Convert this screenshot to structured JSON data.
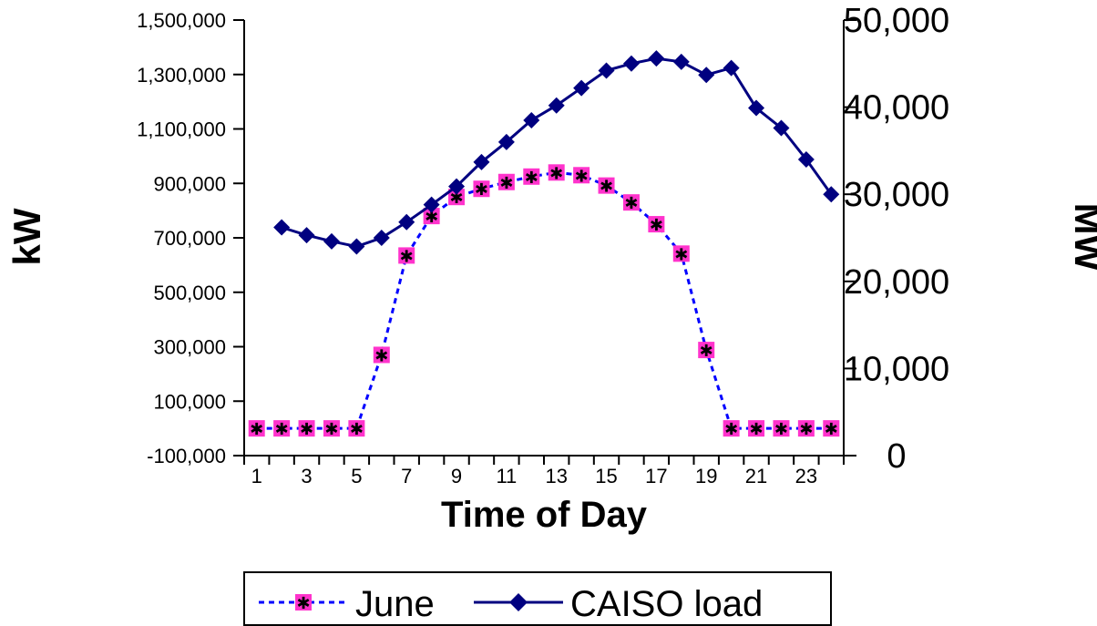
{
  "chart_data": {
    "type": "line",
    "xlabel": "Time of Day",
    "ylabel": "kW",
    "y2label": "MW",
    "x": [
      1,
      2,
      3,
      4,
      5,
      6,
      7,
      8,
      9,
      10,
      11,
      12,
      13,
      14,
      15,
      16,
      17,
      18,
      19,
      20,
      21,
      22,
      23,
      24
    ],
    "x_tick_labels": [
      "1",
      "3",
      "5",
      "7",
      "9",
      "11",
      "13",
      "15",
      "17",
      "19",
      "21",
      "23"
    ],
    "ylim": [
      -100000,
      1500000
    ],
    "y_ticks": [
      "1,500,000",
      "1,300,000",
      "1,100,000",
      "900,000",
      "700,000",
      "500,000",
      "300,000",
      "100,000",
      "-100,000"
    ],
    "y2lim": [
      0,
      50000
    ],
    "y2_ticks": [
      "50,000",
      "40,000",
      "30,000",
      "20,000",
      "10,000",
      "0"
    ],
    "series": [
      {
        "name": "June",
        "axis": "left",
        "line_color": "#0000FF",
        "line_style": "dotted",
        "marker": "square-star",
        "marker_color": "#FF33CC",
        "values": [
          0,
          0,
          0,
          0,
          0,
          270000,
          635000,
          780000,
          850000,
          880000,
          905000,
          925000,
          940000,
          930000,
          892000,
          830000,
          750000,
          642000,
          288000,
          0,
          0,
          0,
          0,
          0
        ]
      },
      {
        "name": "CAISO load",
        "axis": "right",
        "line_color": "#000080",
        "line_style": "solid",
        "marker": "diamond",
        "marker_color": "#000080",
        "values": [
          null,
          26200,
          25300,
          24600,
          24000,
          25000,
          26800,
          28800,
          30900,
          33700,
          36000,
          38500,
          40200,
          42200,
          44200,
          45000,
          45600,
          45200,
          43700,
          44500,
          39900,
          37600,
          34000,
          30000
        ]
      }
    ],
    "legend": {
      "placement": "bottom"
    }
  }
}
